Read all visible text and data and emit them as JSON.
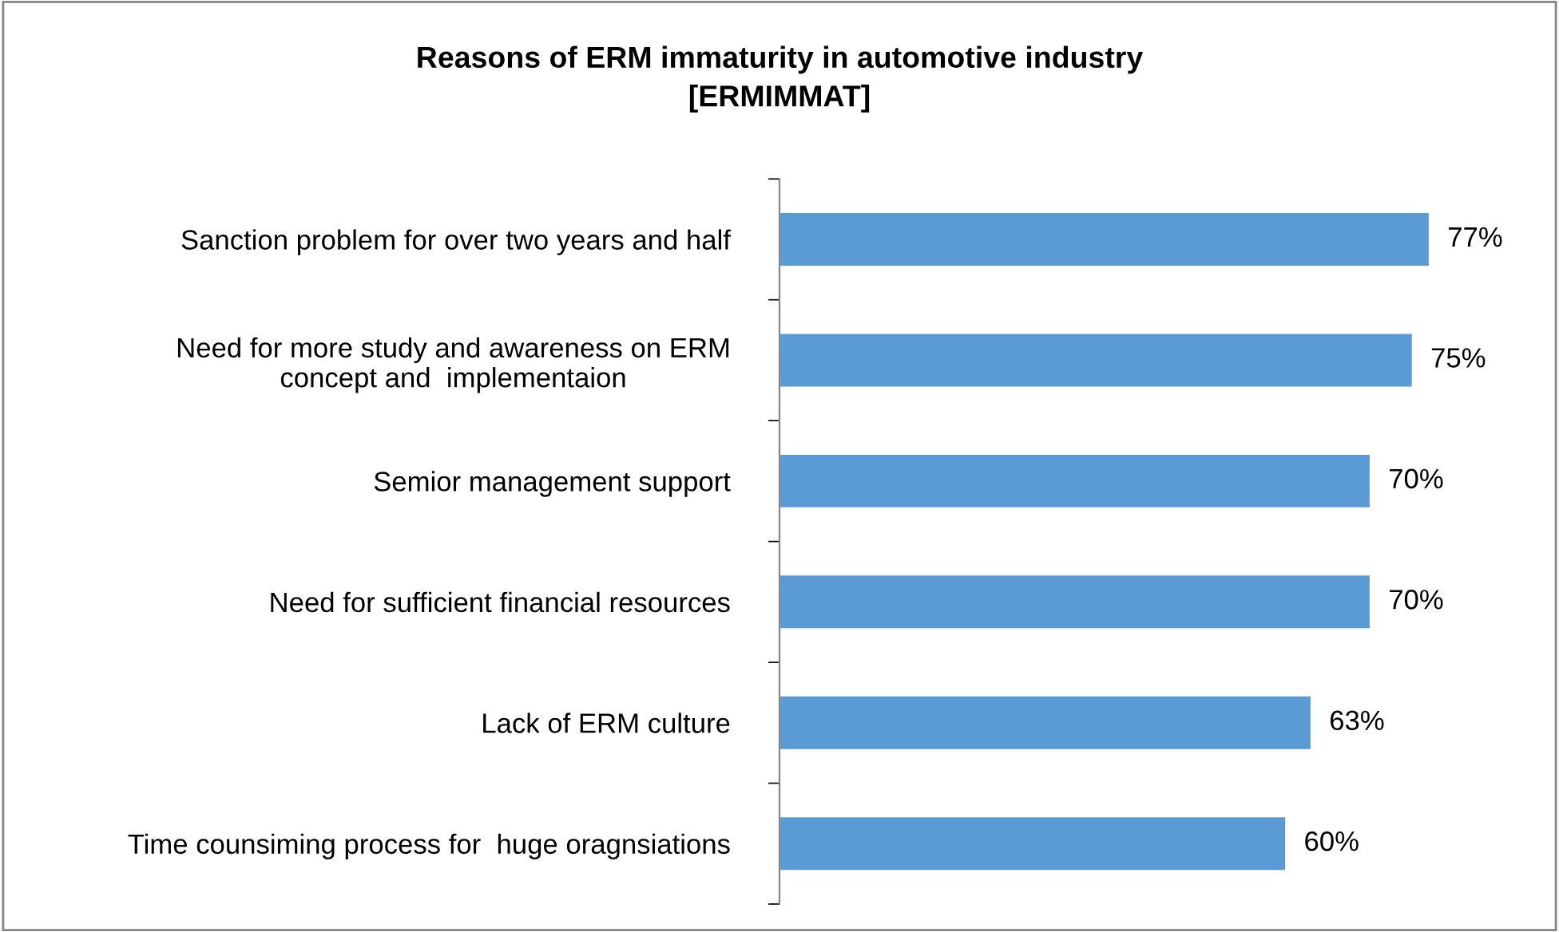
{
  "chart_data": {
    "type": "bar",
    "orientation": "horizontal",
    "title": "Reasons of ERM immaturity in automotive industry\n[ERMIMMAT]",
    "categories": [
      "Sanction problem for over two years and half",
      "Need for more study and awareness on ERM\nconcept and  implementaion",
      "Semior management support",
      "Need for sufficient financial resources",
      "Lack of ERM culture",
      "Time counsiming process for  huge oragnsiations"
    ],
    "values": [
      77,
      75,
      70,
      70,
      63,
      60
    ],
    "value_labels": [
      "77%",
      "75%",
      "70%",
      "70%",
      "63%",
      "60%"
    ],
    "color": "#5b9bd5",
    "tick_labels": "y",
    "grid": false,
    "legend": false
  }
}
